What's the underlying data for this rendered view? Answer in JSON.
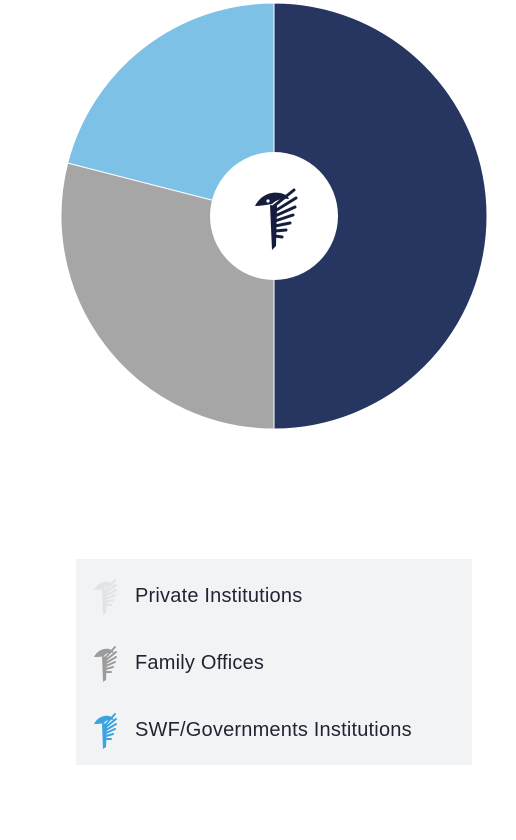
{
  "chart_data": {
    "type": "pie",
    "donut": true,
    "center_icon": "eagle-wing-logo-icon",
    "slices": [
      {
        "value": 50,
        "color": "#263660"
      },
      {
        "value": 29,
        "color": "#a6a6a6"
      },
      {
        "value": 21,
        "color": "#7dc2e6"
      }
    ],
    "legend": [
      {
        "label": "Private Institutions",
        "icon": "eagle-wing-icon",
        "color": "#e2e3e6"
      },
      {
        "label": "Family Offices",
        "icon": "eagle-wing-icon",
        "color": "#9c9c9c"
      },
      {
        "label": "SWF/Governments Institutions",
        "icon": "eagle-wing-icon",
        "color": "#3aa3e0"
      }
    ]
  }
}
